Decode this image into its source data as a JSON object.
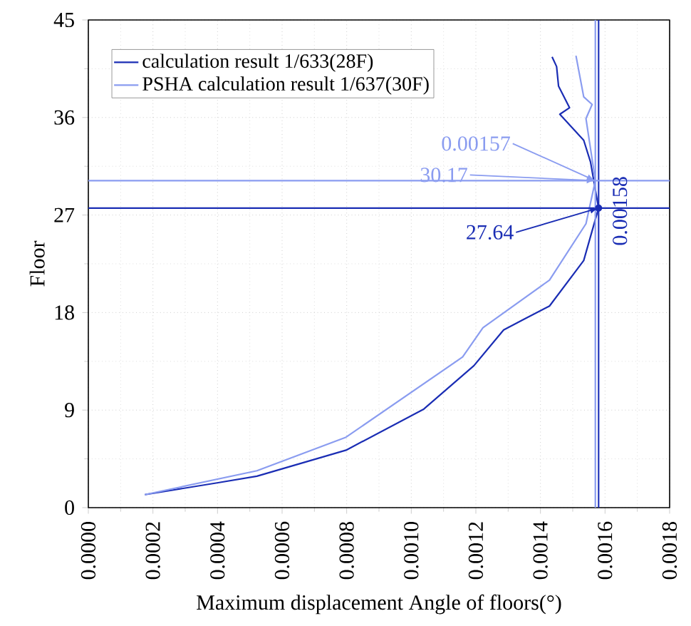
{
  "chart_data": {
    "type": "line",
    "xlabel": "Maximum displacement Angle of floors(°)",
    "ylabel": "Floor",
    "xlim": [
      0,
      0.0018
    ],
    "ylim": [
      0,
      45
    ],
    "xticks": [
      {
        "value": 0,
        "label": "0.0000"
      },
      {
        "value": 0.0002,
        "label": "0.0002"
      },
      {
        "value": 0.0004,
        "label": "0.0004"
      },
      {
        "value": 0.0006,
        "label": "0.0006"
      },
      {
        "value": 0.0008,
        "label": "0.0008"
      },
      {
        "value": 0.001,
        "label": "0.0010"
      },
      {
        "value": 0.0012,
        "label": "0.0012"
      },
      {
        "value": 0.0014,
        "label": "0.0014"
      },
      {
        "value": 0.0016,
        "label": "0.0016"
      },
      {
        "value": 0.0018,
        "label": "0.0018"
      }
    ],
    "yticks": [
      0,
      9,
      18,
      27,
      36,
      45
    ],
    "grid": true,
    "legend": "top left",
    "marker": "none",
    "line_style": "solid",
    "series": [
      {
        "name": "calculation result 1/633(28F)",
        "color": "#1a2db4",
        "x": [
          0.000175,
          0.000402,
          0.000522,
          0.000798,
          0.001039,
          0.001194,
          0.001286,
          0.00135,
          0.001428,
          0.001534,
          0.00158,
          0.001555,
          0.001534,
          0.00146,
          0.00149,
          0.001456,
          0.00145,
          0.001436
        ],
        "values": [
          1.2,
          2.3,
          2.9,
          5.3,
          9.1,
          13.1,
          16.4,
          17.4,
          18.6,
          22.8,
          27.64,
          31.9,
          33.9,
          36.3,
          36.9,
          38.9,
          40.7,
          41.6
        ]
      },
      {
        "name": "PSHA calculation result 1/637(30F)",
        "color": "#8a9cf0",
        "x": [
          0.000175,
          0.000522,
          0.000798,
          0.001159,
          0.001222,
          0.001428,
          0.001541,
          0.00157,
          0.001541,
          0.00156,
          0.001534,
          0.00151
        ],
        "values": [
          1.2,
          3.4,
          6.5,
          13.9,
          16.6,
          21.0,
          26.2,
          30.17,
          35.9,
          37.2,
          37.9,
          41.7
        ]
      }
    ],
    "ref_lines": [
      {
        "axis": "x",
        "value": 0.00158,
        "color": "#1a2db4",
        "line_style": "solid",
        "label": "0.00158"
      },
      {
        "axis": "y",
        "value": 27.64,
        "color": "#1a2db4",
        "line_style": "solid",
        "label": "27.64"
      },
      {
        "axis": "x",
        "value": 0.00157,
        "color": "#8a9cf0",
        "line_style": "solid",
        "label": "0.00157"
      },
      {
        "axis": "y",
        "value": 30.17,
        "color": "#8a9cf0",
        "line_style": "solid",
        "label": "30.17"
      }
    ]
  }
}
